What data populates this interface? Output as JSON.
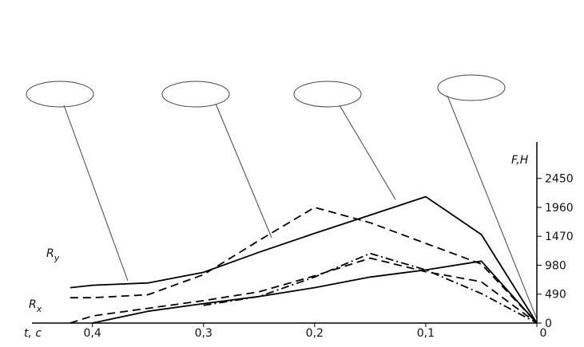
{
  "chart_data": {
    "type": "line",
    "x_label": "t, c",
    "y_label": "F,H",
    "x": [
      0.42,
      0.4,
      0.35,
      0.3,
      0.25,
      0.2,
      0.15,
      0.1,
      0.05,
      0
    ],
    "xlim": [
      0.44,
      0
    ],
    "ylim": [
      0,
      3000
    ],
    "xticks": [
      {
        "value": 0.4,
        "label": "0,4"
      },
      {
        "value": 0.3,
        "label": "0,3"
      },
      {
        "value": 0.2,
        "label": "0,2"
      },
      {
        "value": 0.1,
        "label": "0,1"
      },
      0
    ],
    "yticks": [
      0,
      490,
      980,
      1470,
      1960,
      2450
    ],
    "series": [
      {
        "color": "#000000",
        "dash": "solid",
        "values": [
          600,
          640,
          680,
          860,
          1200,
          1520,
          1830,
          2140,
          1500,
          0
        ]
      },
      {
        "color": "#000000",
        "dash": "dashed",
        "values": [
          430,
          430,
          480,
          820,
          1400,
          1960,
          1700,
          1350,
          1000,
          0
        ]
      },
      {
        "color": "#000000",
        "dash": "solid",
        "values": [
          null,
          0,
          200,
          330,
          450,
          600,
          780,
          900,
          1050,
          0
        ]
      },
      {
        "color": "#000000",
        "dash": "dashed",
        "values": [
          0,
          120,
          250,
          380,
          530,
          800,
          1100,
          870,
          700,
          0
        ]
      },
      {
        "color": "#000000",
        "dash": "dashdot",
        "values": [
          null,
          null,
          null,
          300,
          450,
          780,
          1180,
          900,
          500,
          0
        ]
      }
    ],
    "annotations": [
      {
        "symbol": "R",
        "subscript": "y"
      },
      {
        "symbol": "R",
        "subscript": "x"
      }
    ]
  }
}
